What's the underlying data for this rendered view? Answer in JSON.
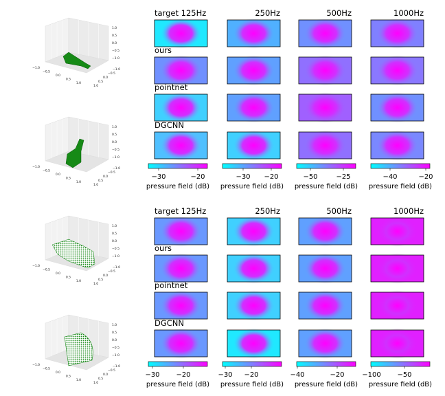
{
  "groups": [
    {
      "freq_labels": [
        "target 125Hz",
        "250Hz",
        "500Hz",
        "1000Hz"
      ],
      "row_labels": [
        "ours",
        "pointnet",
        "DGCNN"
      ],
      "colorbars": [
        {
          "ticks": [
            "−30",
            "−20"
          ],
          "label": "pressure field (dB)"
        },
        {
          "ticks": [
            "−30",
            "−20"
          ],
          "label": "pressure field (dB)"
        },
        {
          "ticks": [
            "−50",
            "−25"
          ],
          "label": "pressure field (dB)"
        },
        {
          "ticks": [
            "−40",
            "−20"
          ],
          "label": "pressure field (dB)"
        }
      ]
    },
    {
      "freq_labels": [
        "target 125Hz",
        "250Hz",
        "500Hz",
        "1000Hz"
      ],
      "row_labels": [
        "ours",
        "pointnet",
        "DGCNN"
      ],
      "colorbars": [
        {
          "ticks": [
            "−30",
            "−20"
          ],
          "label": "pressure field (dB)"
        },
        {
          "ticks": [
            "−30",
            "−20"
          ],
          "label": "pressure field (dB)"
        },
        {
          "ticks": [
            "−40",
            "−20"
          ],
          "label": "pressure field (dB)"
        },
        {
          "ticks": [
            "−100",
            "−50"
          ],
          "label": "pressure field (dB)"
        }
      ]
    }
  ],
  "axis3d_ticks": [
    "−1.0",
    "−0.5",
    "0.0",
    "0.5",
    "1.0"
  ]
}
